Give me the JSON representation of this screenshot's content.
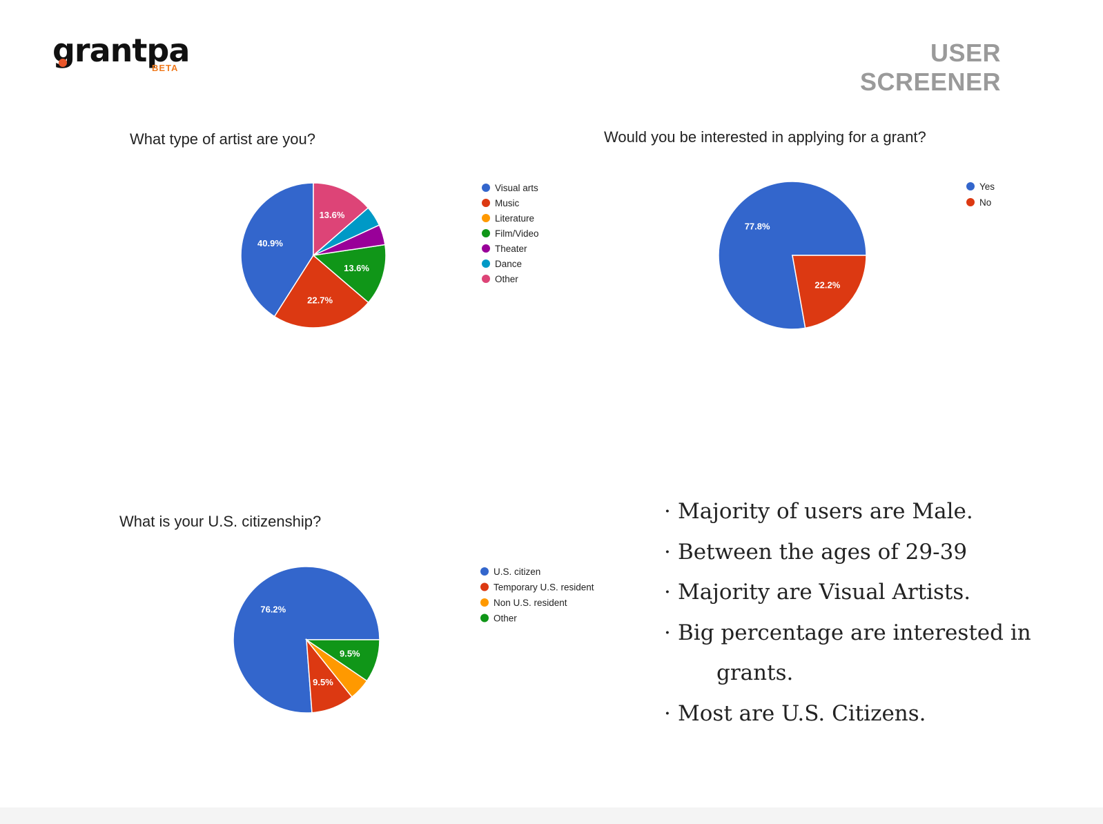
{
  "brand": {
    "name": "grantpa",
    "badge": "BETA",
    "colors": {
      "accent": "#f07a1d",
      "dot": "#e8562a",
      "text": "#111111"
    }
  },
  "page": {
    "title": "USER SCREENER"
  },
  "chart_data": [
    {
      "type": "pie",
      "title": "What type of artist are you?",
      "start_angle_deg": 90,
      "categories": [
        "Visual arts",
        "Music",
        "Literature",
        "Film/Video",
        "Theater",
        "Dance",
        "Other"
      ],
      "values": [
        40.9,
        22.7,
        0,
        13.6,
        4.5,
        4.5,
        13.6
      ],
      "data_labels": [
        "40.9%",
        "22.7%",
        "",
        "13.6%",
        "",
        "",
        "13.6%"
      ],
      "colors": [
        "#3366cc",
        "#dc3912",
        "#ff9900",
        "#109618",
        "#990099",
        "#0099c6",
        "#dd4477"
      ],
      "legend_position": "right"
    },
    {
      "type": "pie",
      "title": "Would you be interested in applying for a grant?",
      "start_angle_deg": 0,
      "categories": [
        "Yes",
        "No"
      ],
      "values": [
        77.8,
        22.2
      ],
      "data_labels": [
        "77.8%",
        "22.2%"
      ],
      "colors": [
        "#3366cc",
        "#dc3912"
      ],
      "legend_position": "right"
    },
    {
      "type": "pie",
      "title": "What is your U.S. citizenship?",
      "start_angle_deg": 0,
      "categories": [
        "U.S. citizen",
        "Temporary U.S. resident",
        "Non U.S. resident",
        "Other"
      ],
      "values": [
        76.2,
        9.5,
        4.8,
        9.5
      ],
      "data_labels": [
        "76.2%",
        "9.5%",
        "",
        "9.5%"
      ],
      "colors": [
        "#3366cc",
        "#dc3912",
        "#ff9900",
        "#109618"
      ],
      "legend_position": "right"
    }
  ],
  "summary": {
    "bullets": [
      "Majority of users are Male.",
      "Between the ages of 29-39",
      "Majority are Visual Artists.",
      "Big percentage are interested in",
      "Most are U.S. Citizens."
    ],
    "bullet4_continuation": "grants."
  }
}
